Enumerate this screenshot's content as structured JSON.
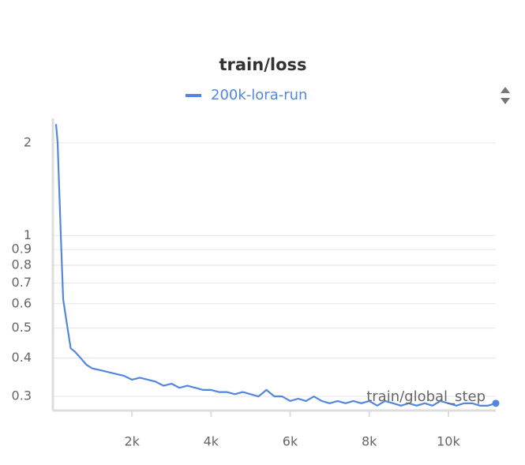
{
  "chart_data": {
    "type": "line",
    "title": "train/loss",
    "x_label": "train/global_step",
    "x": [
      80,
      120,
      200,
      260,
      350,
      450,
      550,
      700,
      850,
      1000,
      1200,
      1400,
      1600,
      1800,
      2000,
      2200,
      2400,
      2600,
      2800,
      3000,
      3200,
      3400,
      3600,
      3800,
      4000,
      4200,
      4400,
      4600,
      4800,
      5000,
      5200,
      5400,
      5600,
      5800,
      6000,
      6200,
      6400,
      6600,
      6800,
      7000,
      7200,
      7400,
      7600,
      7800,
      8000,
      8200,
      8400,
      8600,
      8800,
      9000,
      9200,
      9400,
      9600,
      9800,
      10000,
      10200,
      10400,
      10600,
      10800,
      11000,
      11200
    ],
    "series": [
      {
        "name": "200k-lora-run",
        "color": "#5387dd",
        "values": [
          2.3,
          2.0,
          1.0,
          0.62,
          0.52,
          0.43,
          0.42,
          0.4,
          0.38,
          0.37,
          0.365,
          0.36,
          0.355,
          0.35,
          0.34,
          0.345,
          0.34,
          0.335,
          0.325,
          0.33,
          0.32,
          0.325,
          0.32,
          0.315,
          0.315,
          0.31,
          0.31,
          0.305,
          0.31,
          0.305,
          0.3,
          0.315,
          0.3,
          0.3,
          0.29,
          0.295,
          0.29,
          0.3,
          0.29,
          0.285,
          0.29,
          0.285,
          0.29,
          0.285,
          0.29,
          0.28,
          0.29,
          0.285,
          0.28,
          0.285,
          0.28,
          0.285,
          0.28,
          0.29,
          0.285,
          0.28,
          0.285,
          0.285,
          0.28,
          0.28,
          0.285
        ]
      }
    ],
    "xlim": [
      0,
      11200
    ],
    "xticks": [
      {
        "value": 2000,
        "label": "2k"
      },
      {
        "value": 4000,
        "label": "4k"
      },
      {
        "value": 6000,
        "label": "6k"
      },
      {
        "value": 8000,
        "label": "8k"
      },
      {
        "value": 10000,
        "label": "10k"
      }
    ],
    "ylim": [
      0.27,
      2.4
    ],
    "yscale": "log",
    "yticks": [
      0.3,
      0.4,
      0.5,
      0.6,
      0.7,
      0.8,
      0.9,
      1,
      2
    ],
    "grid": true
  }
}
